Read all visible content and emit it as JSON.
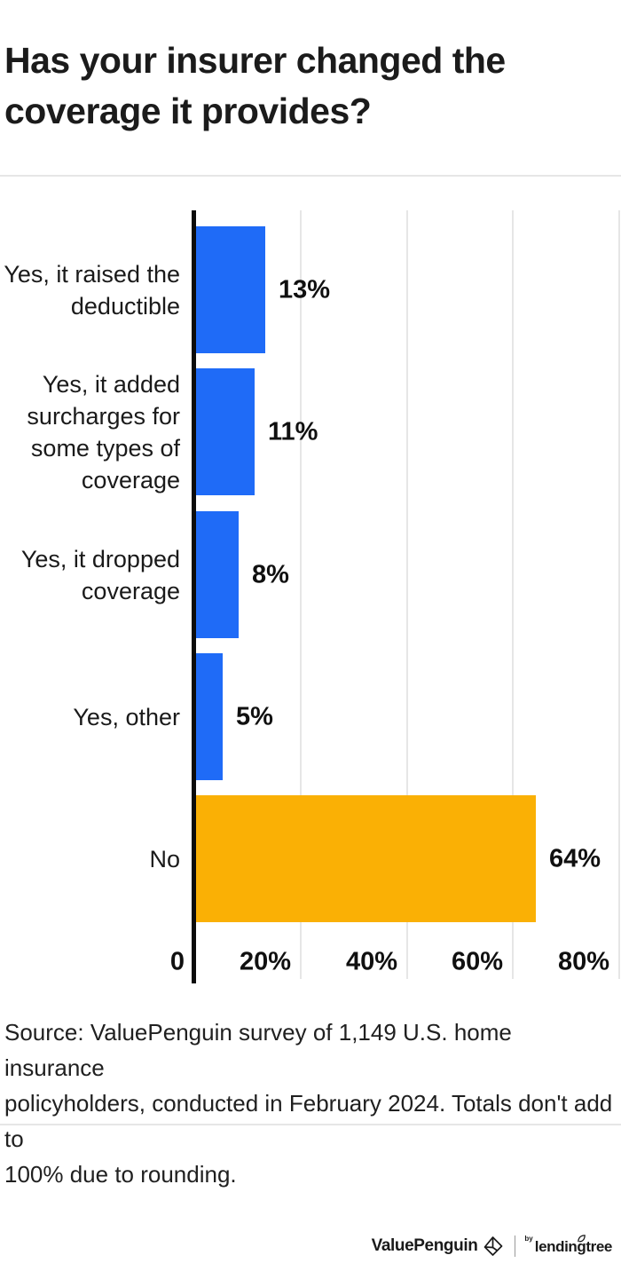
{
  "title": "Has your insurer changed the\ncoverage it provides?",
  "chart_data": {
    "type": "bar",
    "orientation": "horizontal",
    "title": "Has your insurer changed the coverage it provides?",
    "categories": [
      "Yes, it raised the deductible",
      "Yes, it added surcharges for some types of coverage",
      "Yes, it dropped coverage",
      "Yes, other",
      "No"
    ],
    "category_lines": [
      [
        "Yes, it raised the",
        "deductible"
      ],
      [
        "Yes, it added",
        "surcharges for",
        "some types of",
        "coverage"
      ],
      [
        "Yes, it dropped",
        "coverage"
      ],
      [
        "Yes, other"
      ],
      [
        "No"
      ]
    ],
    "values": [
      13,
      11,
      8,
      5,
      64
    ],
    "value_labels": [
      "13%",
      "11%",
      "8%",
      "5%",
      "64%"
    ],
    "bar_colors": [
      "#1f6bf7",
      "#1f6bf7",
      "#1f6bf7",
      "#1f6bf7",
      "#fab005"
    ],
    "x_axis": {
      "ticks": [
        {
          "label": "0",
          "value": 0
        },
        {
          "label": "20%",
          "value": 20
        },
        {
          "label": "40%",
          "value": 40
        },
        {
          "label": "60%",
          "value": 60
        },
        {
          "label": "80%",
          "value": 80
        }
      ],
      "xlim": [
        0,
        80
      ]
    },
    "grid": true,
    "legend": false
  },
  "source": "Source: ValuePenguin survey of 1,149 U.S. home insurance\npolicyholders, conducted in February 2024. Totals don't add to\n100% due to rounding.",
  "footer": {
    "valuepenguin": "ValuePenguin",
    "by": "by",
    "lendingtree": "lendingtree"
  },
  "colors": {
    "bar_blue": "#1f6bf7",
    "bar_orange": "#fab005",
    "axis_black": "#0c0c0c",
    "gridline_gray": "#e6e6e6",
    "text_dark": "#1a1a1a"
  }
}
